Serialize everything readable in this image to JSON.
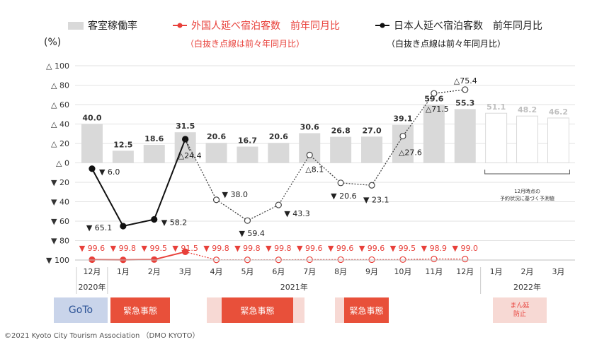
{
  "legend": {
    "occupancy": "客室稼働率",
    "foreign": "外国人延べ宿泊客数　前年同月比",
    "japanese": "日本人延べ宿泊客数　前年同月比",
    "foreign_note": "（白抜き点線は前々年同月比）",
    "japanese_note": "（白抜き点線は前々年同月比）"
  },
  "unit": "(%)",
  "forecast_note": "12月時点の\n予約状況に基づく予測値",
  "copyright": "©2021 Kyoto City Tourism Association （DMO KYOTO）",
  "colors": {
    "bar": "#d9d9d9",
    "red": "#e8403a",
    "black": "#111111",
    "goto": "#c9d4ea",
    "emergency": "#e8503a",
    "emergency_light": "#f7d9d4"
  },
  "bands": {
    "goto": "GoTo",
    "emergency1": "緊急事態",
    "emergency2": "緊急事態",
    "emergency3": "緊急事態",
    "manen": "まん延\n防止"
  },
  "chart_data": {
    "type": "bar",
    "categories": [
      "12月",
      "1月",
      "2月",
      "3月",
      "4月",
      "5月",
      "6月",
      "7月",
      "8月",
      "9月",
      "10月",
      "11月",
      "12月",
      "1月",
      "2月",
      "3月"
    ],
    "year_labels": [
      "2020年",
      "2021年",
      "2022年"
    ],
    "ylim": [
      -100,
      100
    ],
    "yticks": [
      "△ 100",
      "△ 80",
      "△ 60",
      "△ 40",
      "△ 20",
      "△ 0",
      "▼ 20",
      "▼ 40",
      "▼ 60",
      "▼ 80",
      "▼ 100"
    ],
    "occupancy": {
      "name": "客室稼働率",
      "values": [
        40.0,
        12.5,
        18.6,
        31.5,
        20.6,
        16.7,
        20.6,
        30.6,
        26.8,
        27.0,
        39.1,
        59.6,
        55.3,
        51.1,
        48.2,
        46.2
      ],
      "labels": [
        "40.0",
        "12.5",
        "18.6",
        "31.5",
        "20.6",
        "16.7",
        "20.6",
        "30.6",
        "26.8",
        "27.0",
        "39.1",
        "59.6",
        "55.3",
        "51.1",
        "48.2",
        "46.2"
      ],
      "forecast_from_index": 13
    },
    "japanese_yoy": {
      "name": "日本人延べ宿泊客数　前年同月比",
      "values": [
        -6.0,
        -65.1,
        -58.2,
        24.4
      ],
      "labels": [
        "▼ 6.0",
        "▼ 65.1",
        "▼ 58.2",
        "△24.4"
      ]
    },
    "japanese_vs2019": {
      "values": [
        24.4,
        -38.0,
        -59.4,
        -43.3,
        8.1,
        -20.6,
        -23.1,
        27.6,
        71.5,
        75.4
      ],
      "labels": [
        "",
        "▼ 38.0",
        "▼ 59.4",
        "▼ 43.3",
        "△8.1",
        "▼ 20.6",
        "▼ 23.1",
        "△27.6",
        "△71.5",
        "△75.4"
      ]
    },
    "foreign_yoy": {
      "name": "外国人延べ宿泊客数　前年同月比",
      "values": [
        -99.6,
        -99.8,
        -99.5,
        -91.5
      ],
      "labels": [
        "▼ 99.6",
        "▼ 99.8",
        "▼ 99.5",
        "▼ 91.5"
      ]
    },
    "foreign_vs2019": {
      "values": [
        -91.5,
        -99.8,
        -99.8,
        -99.8,
        -99.6,
        -99.6,
        -99.6,
        -99.5,
        -98.9,
        -99.0
      ],
      "labels": [
        "",
        "▼ 99.8",
        "▼ 99.8",
        "▼ 99.8",
        "▼ 99.6",
        "▼ 99.6",
        "▼ 99.6",
        "▼ 99.5",
        "▼ 98.9",
        "▼ 99.0"
      ]
    }
  }
}
